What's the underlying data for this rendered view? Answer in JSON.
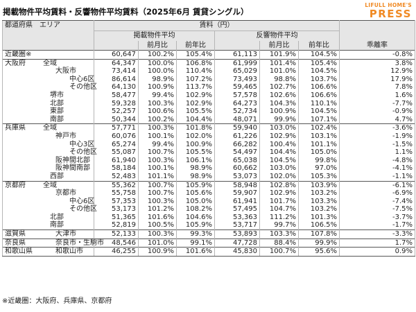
{
  "title": "掲載物件平均賃料・反響物件平均賃料（2025年6月 賃貸シングル）",
  "logo": {
    "line1": "LIFULL HOME'S",
    "line2": "PRESS"
  },
  "header": {
    "area_label": "都道府県　エリア",
    "rent_label": "賃料（円）",
    "listed_label": "掲載物件平均",
    "response_label": "反響物件平均",
    "gap_label": "乖離率",
    "mom_label": "前月比",
    "yoy_label": "前年比"
  },
  "rows": [
    {
      "pref": "近畿圏※",
      "area": "",
      "lvl": 0,
      "lp": "60,647",
      "lm": "100.2%",
      "ly": "105.4%",
      "rp": "61,113",
      "rm": "101.9%",
      "ry": "104.5%",
      "gap": "-0.8%"
    },
    {
      "pref": "大阪府",
      "area": "全域",
      "lvl": 0,
      "lp": "64,347",
      "lm": "100.0%",
      "ly": "106.8%",
      "rp": "61,999",
      "rm": "101.4%",
      "ry": "105.4%",
      "gap": "3.8%"
    },
    {
      "pref": "",
      "area": "大阪市",
      "lvl": 1,
      "lp": "73,414",
      "lm": "100.0%",
      "ly": "110.4%",
      "rp": "65,029",
      "rm": "101.0%",
      "ry": "104.5%",
      "gap": "12.9%"
    },
    {
      "pref": "",
      "area": "中心6区",
      "lvl": 2,
      "lp": "86,614",
      "lm": "98.9%",
      "ly": "107.2%",
      "rp": "73,493",
      "rm": "98.8%",
      "ry": "103.7%",
      "gap": "17.9%"
    },
    {
      "pref": "",
      "area": "その他区",
      "lvl": 2,
      "lp": "64,130",
      "lm": "100.9%",
      "ly": "113.7%",
      "rp": "59,465",
      "rm": "102.7%",
      "ry": "106.6%",
      "gap": "7.8%"
    },
    {
      "pref": "",
      "area": "堺市",
      "lvl": 3,
      "lp": "58,477",
      "lm": "99.4%",
      "ly": "102.9%",
      "rp": "57,578",
      "rm": "102.6%",
      "ry": "106.6%",
      "gap": "1.6%"
    },
    {
      "pref": "",
      "area": "北部",
      "lvl": 3,
      "lp": "59,328",
      "lm": "100.3%",
      "ly": "102.9%",
      "rp": "64,273",
      "rm": "104.3%",
      "ry": "110.1%",
      "gap": "-7.7%"
    },
    {
      "pref": "",
      "area": "東部",
      "lvl": 3,
      "lp": "52,257",
      "lm": "100.6%",
      "ly": "105.5%",
      "rp": "52,734",
      "rm": "100.9%",
      "ry": "104.5%",
      "gap": "-0.9%"
    },
    {
      "pref": "",
      "area": "南部",
      "lvl": 3,
      "lp": "50,344",
      "lm": "100.2%",
      "ly": "104.4%",
      "rp": "48,071",
      "rm": "99.9%",
      "ry": "107.1%",
      "gap": "4.7%"
    },
    {
      "pref": "兵庫県",
      "area": "全域",
      "lvl": 0,
      "lp": "57,771",
      "lm": "100.3%",
      "ly": "101.8%",
      "rp": "59,940",
      "rm": "103.0%",
      "ry": "102.4%",
      "gap": "-3.6%"
    },
    {
      "pref": "",
      "area": "神戸市",
      "lvl": 1,
      "lp": "60,076",
      "lm": "100.1%",
      "ly": "102.0%",
      "rp": "61,226",
      "rm": "102.9%",
      "ry": "103.1%",
      "gap": "-1.9%"
    },
    {
      "pref": "",
      "area": "中心3区",
      "lvl": 2,
      "lp": "65,274",
      "lm": "99.4%",
      "ly": "100.9%",
      "rp": "66,282",
      "rm": "100.4%",
      "ry": "101.1%",
      "gap": "-1.5%"
    },
    {
      "pref": "",
      "area": "その他区",
      "lvl": 2,
      "lp": "55,087",
      "lm": "100.7%",
      "ly": "105.5%",
      "rp": "54,497",
      "rm": "104.4%",
      "ry": "105.0%",
      "gap": "1.1%"
    },
    {
      "pref": "",
      "area": "阪神間北部",
      "lvl": 1,
      "lp": "61,940",
      "lm": "100.3%",
      "ly": "106.1%",
      "rp": "65,038",
      "rm": "104.5%",
      "ry": "99.8%",
      "gap": "-4.8%"
    },
    {
      "pref": "",
      "area": "阪神間南部",
      "lvl": 1,
      "lp": "58,184",
      "lm": "100.1%",
      "ly": "98.9%",
      "rp": "60,662",
      "rm": "103.0%",
      "ry": "97.0%",
      "gap": "-4.1%"
    },
    {
      "pref": "",
      "area": "西部",
      "lvl": 3,
      "lp": "52,483",
      "lm": "101.1%",
      "ly": "98.9%",
      "rp": "53,073",
      "rm": "102.0%",
      "ry": "105.3%",
      "gap": "-1.1%"
    },
    {
      "pref": "京都府",
      "area": "全域",
      "lvl": 0,
      "lp": "55,362",
      "lm": "100.7%",
      "ly": "105.9%",
      "rp": "58,948",
      "rm": "102.8%",
      "ry": "103.9%",
      "gap": "-6.1%"
    },
    {
      "pref": "",
      "area": "京都市",
      "lvl": 1,
      "lp": "55,758",
      "lm": "100.7%",
      "ly": "105.6%",
      "rp": "59,907",
      "rm": "102.9%",
      "ry": "103.2%",
      "gap": "-6.9%"
    },
    {
      "pref": "",
      "area": "中心6区",
      "lvl": 2,
      "lp": "57,353",
      "lm": "100.3%",
      "ly": "105.0%",
      "rp": "61,941",
      "rm": "101.7%",
      "ry": "103.3%",
      "gap": "-7.4%"
    },
    {
      "pref": "",
      "area": "その他区",
      "lvl": 2,
      "lp": "53,173",
      "lm": "101.2%",
      "ly": "108.2%",
      "rp": "57,495",
      "rm": "104.7%",
      "ry": "103.2%",
      "gap": "-7.5%"
    },
    {
      "pref": "",
      "area": "北部",
      "lvl": 3,
      "lp": "51,365",
      "lm": "101.6%",
      "ly": "104.6%",
      "rp": "53,363",
      "rm": "111.2%",
      "ry": "101.3%",
      "gap": "-3.7%"
    },
    {
      "pref": "",
      "area": "南部",
      "lvl": 3,
      "lp": "52,819",
      "lm": "100.5%",
      "ly": "105.9%",
      "rp": "53,717",
      "rm": "99.7%",
      "ry": "106.5%",
      "gap": "-1.7%"
    },
    {
      "pref": "滋賀県",
      "area": "大津市",
      "lvl": 1,
      "lp": "52,133",
      "lm": "100.3%",
      "ly": "99.3%",
      "rp": "53,893",
      "rm": "103.3%",
      "ry": "107.8%",
      "gap": "-3.3%"
    },
    {
      "pref": "奈良県",
      "area": "奈良市・生駒市",
      "lvl": 1,
      "lp": "48,546",
      "lm": "101.0%",
      "ly": "99.1%",
      "rp": "47,728",
      "rm": "88.4%",
      "ry": "99.9%",
      "gap": "1.7%"
    },
    {
      "pref": "和歌山県",
      "area": "和歌山市",
      "lvl": 1,
      "lp": "46,255",
      "lm": "100.9%",
      "ly": "101.6%",
      "rp": "45,830",
      "rm": "100.7%",
      "ry": "95.6%",
      "gap": "0.9%"
    }
  ],
  "note": "※近畿圏：大阪府、兵庫県、京都府"
}
